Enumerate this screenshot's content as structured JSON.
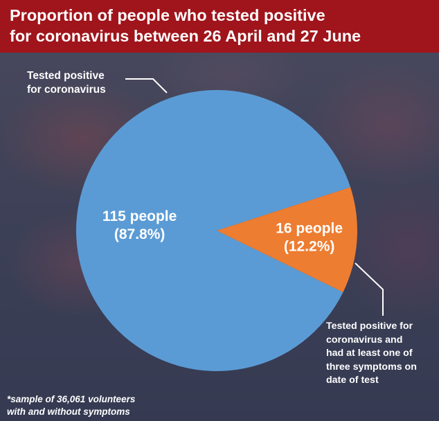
{
  "title": "Proportion of people who tested positive\nfor coronavirus between 26 April and 27 June",
  "colors": {
    "header": "#a0141b",
    "slice_main": "#5b9bd5",
    "slice_small": "#ed7d31",
    "text": "#ffffff"
  },
  "chart_data": {
    "type": "pie",
    "title": "Proportion of people who tested positive for coronavirus between 26 April and 27 June",
    "slices": [
      {
        "name": "Tested positive for coronavirus",
        "value": 115,
        "percent": 87.8,
        "label_line1": "115 people",
        "label_line2": "(87.8%)",
        "color": "#5b9bd5"
      },
      {
        "name": "Tested positive for coronavirus and had at least one of three symptoms on date of test",
        "value": 16,
        "percent": 12.2,
        "label_line1": "16 people",
        "label_line2": "(12.2%)",
        "color": "#ed7d31"
      }
    ]
  },
  "callouts": {
    "main": "Tested positive\nfor coronavirus",
    "small": "Tested positive for\ncoronavirus and\nhad at least one of\nthree symptoms on\ndate of test"
  },
  "footnote": "*sample of 36,061 volunteers\nwith and without symptoms"
}
